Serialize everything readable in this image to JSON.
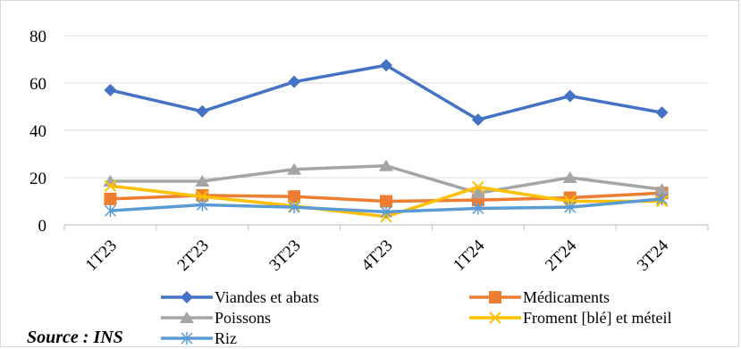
{
  "source_note": "Source : INS",
  "chart_data": {
    "type": "line",
    "title": "",
    "xlabel": "",
    "ylabel": "",
    "categories": [
      "1T23",
      "2T23",
      "3T23",
      "4T23",
      "1T24",
      "2T24",
      "3T24"
    ],
    "ylim": [
      0,
      80
    ],
    "yticks": [
      "0",
      "20",
      "40",
      "60",
      "80"
    ],
    "grid": "horizontal",
    "legend_position": "bottom",
    "series": [
      {
        "name": "Viandes et abats",
        "color": "#4472C4",
        "marker": "diamond",
        "values": [
          57,
          48,
          60.5,
          67.5,
          44.5,
          54.5,
          47.5
        ]
      },
      {
        "name": "Médicaments",
        "color": "#ED7D31",
        "marker": "square",
        "values": [
          11,
          12.5,
          12,
          10,
          10.5,
          11.5,
          13.5
        ]
      },
      {
        "name": "Poissons",
        "color": "#A5A5A5",
        "marker": "triangle",
        "values": [
          18.5,
          18.5,
          23.5,
          25,
          13.5,
          20,
          15
        ]
      },
      {
        "name": "Froment [blé] et méteil",
        "color": "#FFC000",
        "marker": "x",
        "values": [
          16.5,
          12,
          8,
          3.5,
          16,
          10,
          10
        ]
      },
      {
        "name": "Riz",
        "color": "#5B9BD5",
        "marker": "star",
        "values": [
          6,
          8.5,
          7.5,
          5.5,
          7,
          7.5,
          11
        ]
      }
    ]
  }
}
